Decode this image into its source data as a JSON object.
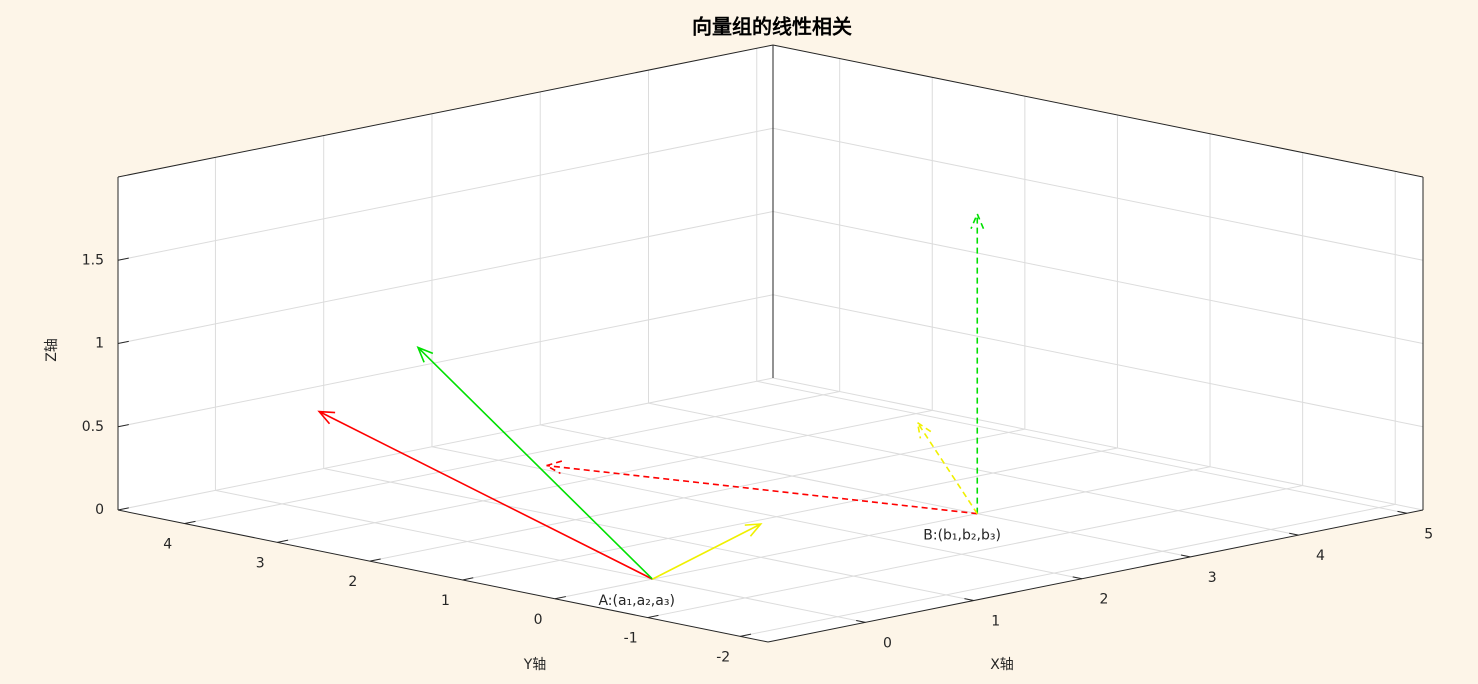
{
  "chart_data": {
    "type": "quiver3",
    "title": "向量组的线性相关",
    "xlabel": "X轴",
    "ylabel": "Y轴",
    "zlabel": "Z轴",
    "xlim": [
      -0.9,
      5.15
    ],
    "ylim": [
      -2.3,
      4.72
    ],
    "zlim": [
      0,
      2
    ],
    "xticks": [
      0,
      1,
      2,
      3,
      4,
      5
    ],
    "yticks": [
      -2,
      -1,
      0,
      1,
      2,
      3,
      4
    ],
    "zticks": [
      0,
      0.5,
      1,
      1.5
    ],
    "grid": true,
    "series": [
      {
        "color": "#ff0000",
        "dashed": false,
        "start": [
          0,
          0,
          0
        ],
        "vector": [
          0,
          3.6,
          0.6
        ]
      },
      {
        "color": "#00e000",
        "dashed": false,
        "start": [
          0,
          0,
          0
        ],
        "vector": [
          0.4,
          3,
          1
        ]
      },
      {
        "color": "#f0f000",
        "dashed": false,
        "start": [
          0,
          0,
          0
        ],
        "vector": [
          1,
          0,
          0.2
        ]
      },
      {
        "color": "#ff0000",
        "dashed": true,
        "start": [
          3,
          0,
          0
        ],
        "vector": [
          -0.9,
          3.6,
          0
        ]
      },
      {
        "color": "#00e000",
        "dashed": true,
        "start": [
          3,
          0,
          0
        ],
        "vector": [
          0,
          0,
          1.8
        ]
      },
      {
        "color": "#f0f000",
        "dashed": true,
        "start": [
          3,
          0,
          0
        ],
        "vector": [
          1.8,
          2.75,
          0
        ]
      }
    ],
    "annotations": [
      {
        "text": "A:(a₁,a₂,a₃)",
        "point": [
          0,
          0,
          0
        ]
      },
      {
        "text": "B:(b₁,b₂,b₃)",
        "point": [
          3,
          0,
          0
        ]
      }
    ]
  }
}
